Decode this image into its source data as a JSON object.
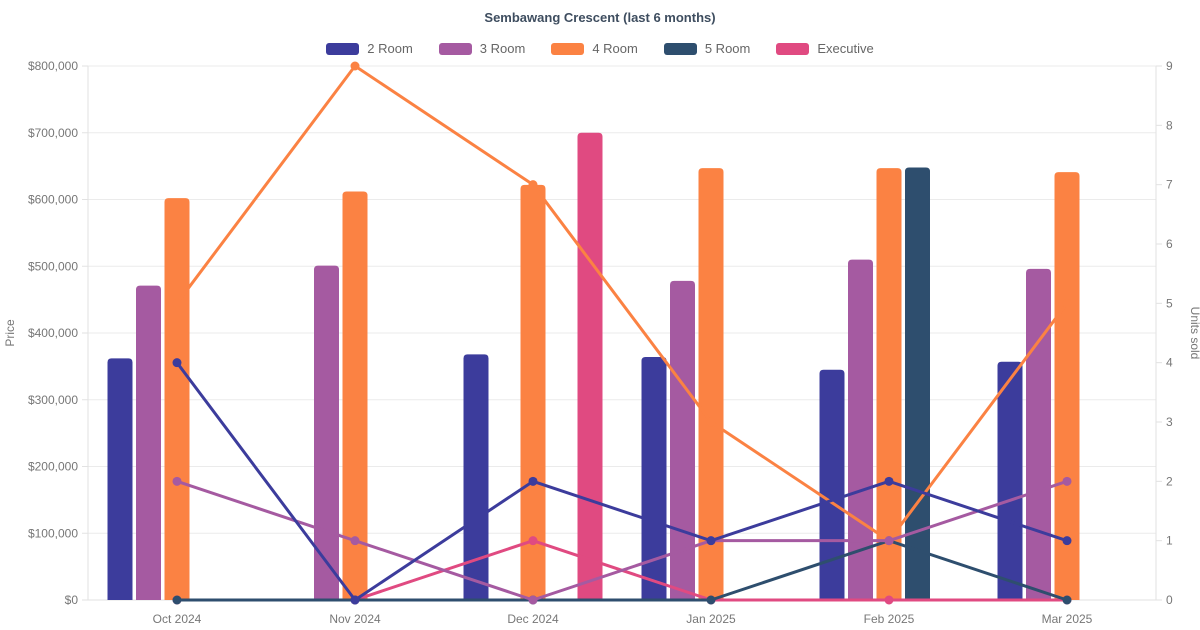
{
  "chart_data": {
    "type": "combo-bar-line",
    "title": "Sembawang Crescent (last 6 months)",
    "categories": [
      "Oct 2024",
      "Nov 2024",
      "Dec 2024",
      "Jan 2025",
      "Feb 2025",
      "Mar 2025"
    ],
    "series": [
      {
        "name": "2 Room",
        "color": "#3c3c9c",
        "prices": [
          362000,
          null,
          368000,
          364000,
          345000,
          357000
        ],
        "units": [
          4,
          0,
          2,
          1,
          2,
          1
        ]
      },
      {
        "name": "3 Room",
        "color": "#a55aa1",
        "prices": [
          471000,
          501000,
          null,
          478000,
          510000,
          496000
        ],
        "units": [
          2,
          1,
          0,
          1,
          1,
          2
        ]
      },
      {
        "name": "4 Room",
        "color": "#fb8243",
        "prices": [
          602000,
          612000,
          622000,
          647000,
          647000,
          641000
        ],
        "units": [
          5,
          9,
          7,
          3,
          1,
          5
        ]
      },
      {
        "name": "5 Room",
        "color": "#2e4e6e",
        "prices": [
          null,
          null,
          null,
          null,
          648000,
          null
        ],
        "units": [
          0,
          0,
          0,
          0,
          1,
          0
        ]
      },
      {
        "name": "Executive",
        "color": "#e04a81",
        "prices": [
          null,
          null,
          700000,
          null,
          null,
          null
        ],
        "units": [
          0,
          0,
          1,
          0,
          0,
          0
        ]
      }
    ],
    "y_left": {
      "label": "Price",
      "min": 0,
      "max": 800000,
      "step": 100000,
      "tick_labels": [
        "$0",
        "$100,000",
        "$200,000",
        "$300,000",
        "$400,000",
        "$500,000",
        "$600,000",
        "$700,000",
        "$800,000"
      ]
    },
    "y_right": {
      "label": "Units sold",
      "min": 0,
      "max": 9,
      "step": 1,
      "tick_labels": [
        "0",
        "1",
        "2",
        "3",
        "4",
        "5",
        "6",
        "7",
        "8",
        "9"
      ]
    },
    "legend_position": "top",
    "grid": true,
    "bars_axis": "left",
    "lines_axis": "right",
    "colors": {
      "grid": "#ebebeb",
      "axis_line": "#e2e2e2",
      "tick_text": "#777777",
      "legend_text": "#666666",
      "title_text": "#3e4d5f"
    }
  }
}
